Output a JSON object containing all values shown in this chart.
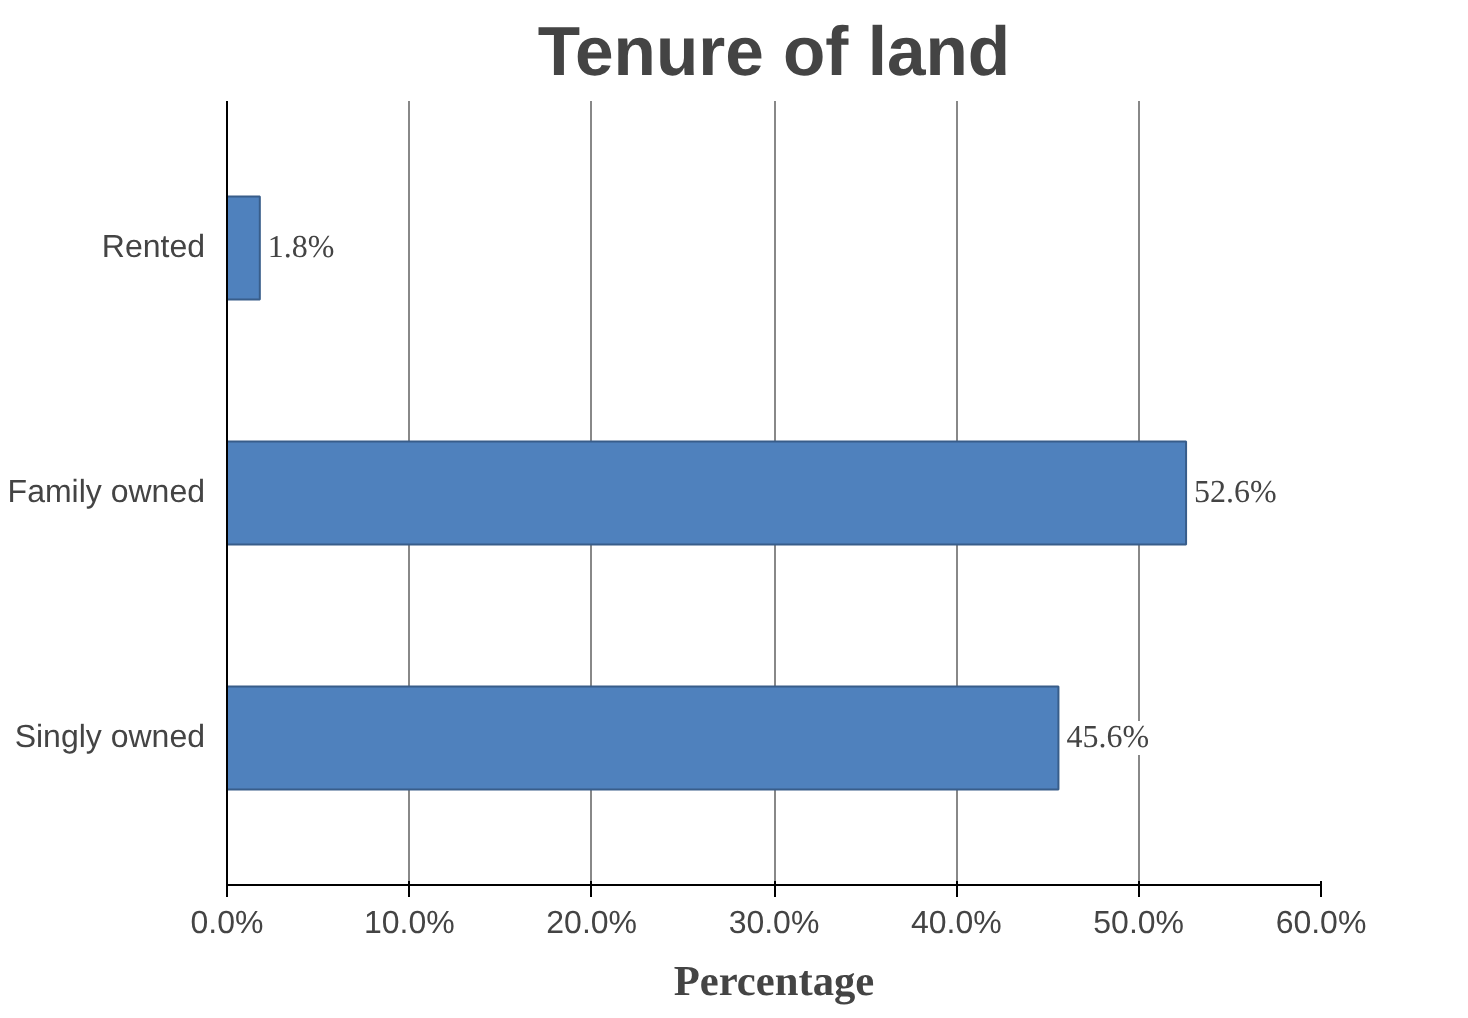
{
  "chart_data": {
    "type": "bar",
    "orientation": "horizontal",
    "title": "Tenure of land",
    "xlabel": "Percentage",
    "categories": [
      "Rented",
      "Family owned",
      "Singly owned"
    ],
    "values": [
      1.8,
      52.6,
      45.6
    ],
    "value_labels": [
      "1.8%",
      "52.6%",
      "45.6%"
    ],
    "color": "#4f81bd",
    "xlim": [
      0,
      60
    ],
    "xticks": [
      {
        "value": 0,
        "label": "0.0%"
      },
      {
        "value": 10,
        "label": "10.0%"
      },
      {
        "value": 20,
        "label": "20.0%"
      },
      {
        "value": 30,
        "label": "30.0%"
      },
      {
        "value": 40,
        "label": "40.0%"
      },
      {
        "value": 50,
        "label": "50.0%"
      },
      {
        "value": 60,
        "label": "60.0%"
      }
    ],
    "grid": "x"
  }
}
